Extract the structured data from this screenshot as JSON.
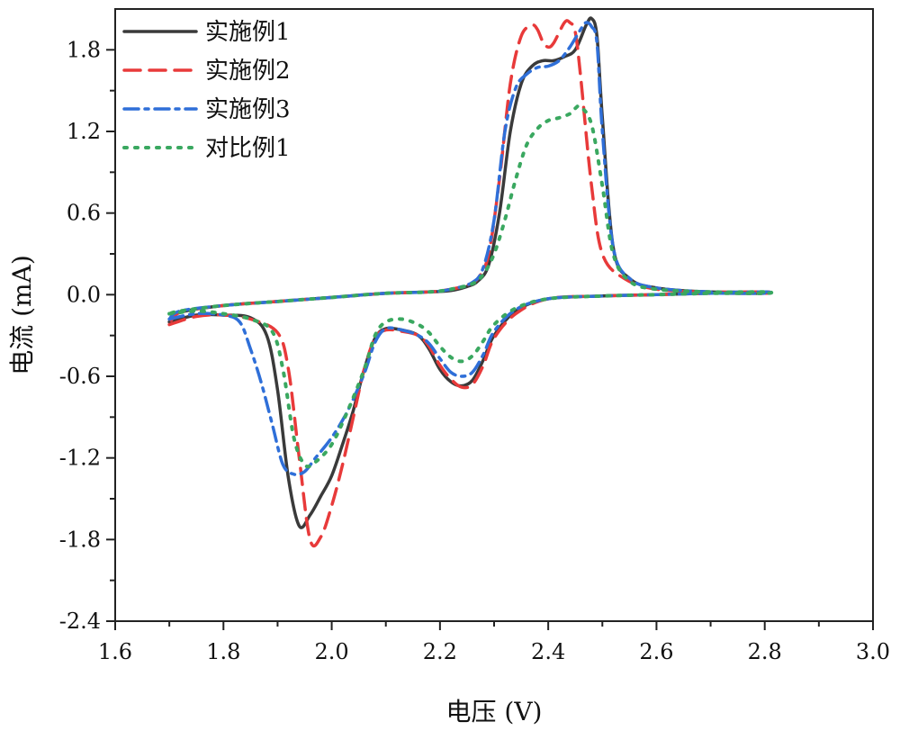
{
  "chart_data": {
    "type": "line",
    "title": "",
    "xlabel": "电压 (V)",
    "ylabel": "电流 (mA)",
    "xlim": [
      1.6,
      3.0
    ],
    "ylim": [
      -2.4,
      2.1
    ],
    "xticks": [
      1.6,
      1.8,
      2.0,
      2.2,
      2.4,
      2.6,
      2.8,
      3.0
    ],
    "xtick_labels": [
      "1.6",
      "1.8",
      "2.0",
      "2.2",
      "2.4",
      "2.6",
      "2.8",
      "3.0"
    ],
    "yticks": [
      -2.4,
      -1.8,
      -1.2,
      -0.6,
      0.0,
      0.6,
      1.2,
      1.8
    ],
    "ytick_labels": [
      "-2.4",
      "-1.8",
      "-1.2",
      "-0.6",
      "0.0",
      "0.6",
      "1.2",
      "1.8"
    ],
    "grid": false,
    "legend_position": "top-left",
    "series": [
      {
        "name": "实施例1",
        "color": "#3a3a3a",
        "style": "solid",
        "x": [
          1.7,
          1.75,
          1.8,
          1.85,
          1.88,
          1.9,
          1.92,
          1.94,
          1.96,
          1.98,
          2.0,
          2.02,
          2.04,
          2.06,
          2.08,
          2.1,
          2.13,
          2.16,
          2.18,
          2.2,
          2.22,
          2.24,
          2.26,
          2.28,
          2.3,
          2.34,
          2.4,
          2.5,
          2.6,
          2.7,
          2.8,
          2.8,
          2.7,
          2.6,
          2.55,
          2.52,
          2.5,
          2.49,
          2.48,
          2.47,
          2.45,
          2.43,
          2.41,
          2.39,
          2.37,
          2.35,
          2.33,
          2.31,
          2.29,
          2.27,
          2.25,
          2.22,
          2.18,
          2.1,
          2.0,
          1.9,
          1.8,
          1.72,
          1.7
        ],
        "y": [
          -0.2,
          -0.15,
          -0.15,
          -0.17,
          -0.3,
          -0.7,
          -1.35,
          -1.7,
          -1.62,
          -1.48,
          -1.33,
          -1.1,
          -0.85,
          -0.55,
          -0.32,
          -0.25,
          -0.26,
          -0.3,
          -0.4,
          -0.55,
          -0.64,
          -0.67,
          -0.63,
          -0.48,
          -0.3,
          -0.12,
          -0.03,
          -0.01,
          0.0,
          0.01,
          0.01,
          0.02,
          0.02,
          0.05,
          0.12,
          0.35,
          1.3,
          1.9,
          2.03,
          1.98,
          1.8,
          1.75,
          1.72,
          1.72,
          1.68,
          1.55,
          1.2,
          0.6,
          0.22,
          0.1,
          0.06,
          0.03,
          0.02,
          0.01,
          -0.02,
          -0.05,
          -0.08,
          -0.13,
          -0.2
        ]
      },
      {
        "name": "实施例2",
        "color": "#e83a3a",
        "style": "dashed",
        "x": [
          1.7,
          1.75,
          1.8,
          1.85,
          1.9,
          1.92,
          1.94,
          1.96,
          1.98,
          2.0,
          2.02,
          2.04,
          2.06,
          2.08,
          2.1,
          2.13,
          2.16,
          2.18,
          2.2,
          2.22,
          2.24,
          2.26,
          2.28,
          2.3,
          2.34,
          2.4,
          2.5,
          2.6,
          2.7,
          2.8,
          2.8,
          2.7,
          2.6,
          2.54,
          2.5,
          2.48,
          2.46,
          2.45,
          2.44,
          2.43,
          2.41,
          2.4,
          2.39,
          2.38,
          2.37,
          2.35,
          2.33,
          2.31,
          2.29,
          2.27,
          2.25,
          2.22,
          2.18,
          2.1,
          2.0,
          1.9,
          1.8,
          1.72,
          1.7
        ],
        "y": [
          -0.22,
          -0.16,
          -0.15,
          -0.18,
          -0.28,
          -0.55,
          -1.2,
          -1.8,
          -1.78,
          -1.55,
          -1.25,
          -0.9,
          -0.55,
          -0.32,
          -0.26,
          -0.27,
          -0.3,
          -0.38,
          -0.52,
          -0.62,
          -0.68,
          -0.66,
          -0.52,
          -0.32,
          -0.14,
          -0.03,
          -0.01,
          0.0,
          0.01,
          0.01,
          0.02,
          0.02,
          0.04,
          0.12,
          0.3,
          0.8,
          1.6,
          1.93,
          2.0,
          2.0,
          1.85,
          1.82,
          1.86,
          1.95,
          1.98,
          1.9,
          1.55,
          0.85,
          0.3,
          0.12,
          0.07,
          0.04,
          0.02,
          0.01,
          -0.02,
          -0.05,
          -0.08,
          -0.13,
          -0.22
        ]
      },
      {
        "name": "实施例3",
        "color": "#2f6fd8",
        "style": "dashdot",
        "x": [
          1.7,
          1.75,
          1.8,
          1.83,
          1.85,
          1.87,
          1.89,
          1.91,
          1.93,
          1.95,
          1.97,
          2.0,
          2.03,
          2.06,
          2.08,
          2.1,
          2.13,
          2.16,
          2.18,
          2.2,
          2.22,
          2.24,
          2.26,
          2.28,
          2.3,
          2.34,
          2.4,
          2.5,
          2.6,
          2.7,
          2.8,
          2.8,
          2.7,
          2.6,
          2.55,
          2.52,
          2.5,
          2.49,
          2.48,
          2.47,
          2.46,
          2.44,
          2.42,
          2.4,
          2.38,
          2.36,
          2.34,
          2.32,
          2.3,
          2.28,
          2.26,
          2.22,
          2.18,
          2.1,
          2.0,
          1.9,
          1.8,
          1.72,
          1.7
        ],
        "y": [
          -0.18,
          -0.14,
          -0.15,
          -0.2,
          -0.4,
          -0.65,
          -0.95,
          -1.25,
          -1.32,
          -1.3,
          -1.2,
          -1.05,
          -0.85,
          -0.58,
          -0.35,
          -0.25,
          -0.26,
          -0.3,
          -0.36,
          -0.47,
          -0.57,
          -0.6,
          -0.57,
          -0.44,
          -0.27,
          -0.11,
          -0.03,
          -0.01,
          0.0,
          0.01,
          0.01,
          0.02,
          0.02,
          0.05,
          0.12,
          0.35,
          1.2,
          1.85,
          1.97,
          2.0,
          1.95,
          1.82,
          1.72,
          1.68,
          1.67,
          1.62,
          1.52,
          1.2,
          0.55,
          0.2,
          0.09,
          0.04,
          0.02,
          0.01,
          -0.02,
          -0.05,
          -0.08,
          -0.12,
          -0.18
        ]
      },
      {
        "name": "对比例1",
        "color": "#3aa860",
        "style": "dotted",
        "x": [
          1.7,
          1.75,
          1.8,
          1.85,
          1.89,
          1.91,
          1.93,
          1.95,
          1.97,
          2.0,
          2.03,
          2.06,
          2.08,
          2.1,
          2.13,
          2.16,
          2.18,
          2.2,
          2.22,
          2.24,
          2.26,
          2.28,
          2.3,
          2.34,
          2.4,
          2.5,
          2.6,
          2.7,
          2.8,
          2.8,
          2.7,
          2.6,
          2.55,
          2.52,
          2.5,
          2.48,
          2.46,
          2.45,
          2.44,
          2.42,
          2.4,
          2.38,
          2.36,
          2.34,
          2.32,
          2.3,
          2.28,
          2.26,
          2.22,
          2.18,
          2.1,
          2.0,
          1.9,
          1.8,
          1.72,
          1.7
        ],
        "y": [
          -0.14,
          -0.12,
          -0.14,
          -0.18,
          -0.27,
          -0.55,
          -1.05,
          -1.25,
          -1.23,
          -1.1,
          -0.85,
          -0.55,
          -0.3,
          -0.2,
          -0.18,
          -0.22,
          -0.28,
          -0.38,
          -0.46,
          -0.49,
          -0.45,
          -0.34,
          -0.22,
          -0.1,
          -0.03,
          -0.01,
          0.0,
          0.01,
          0.01,
          0.02,
          0.02,
          0.04,
          0.1,
          0.3,
          0.8,
          1.25,
          1.38,
          1.37,
          1.33,
          1.3,
          1.28,
          1.22,
          1.1,
          0.85,
          0.55,
          0.3,
          0.15,
          0.08,
          0.04,
          0.02,
          0.01,
          -0.02,
          -0.05,
          -0.08,
          -0.12,
          -0.14
        ]
      }
    ]
  }
}
